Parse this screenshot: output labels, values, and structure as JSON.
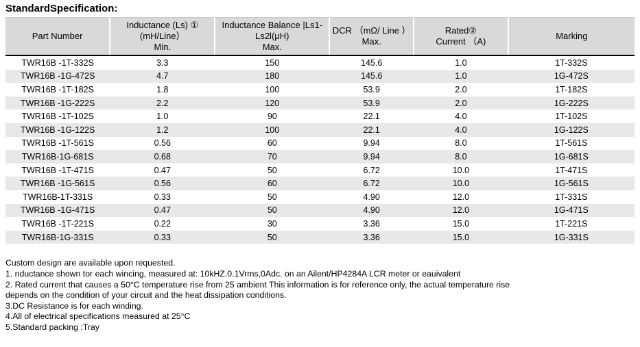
{
  "title": "StandardSpecification:",
  "table": {
    "headers": [
      {
        "id": "part-number",
        "lines": [
          "Part Number"
        ]
      },
      {
        "id": "inductance",
        "lines": [
          "Inductance (Ls) ①",
          "(mH/Line）",
          "Min."
        ]
      },
      {
        "id": "inductance-balance",
        "lines": [
          "Inductance Balance |Ls1-",
          "Ls2l(μH)",
          "Max."
        ]
      },
      {
        "id": "dcr",
        "lines": [
          "DCR （mΩ/ Line ）",
          "Max."
        ]
      },
      {
        "id": "rated-current",
        "lines": [
          "Rated②",
          "Current （A)"
        ]
      },
      {
        "id": "marking",
        "lines": [
          "Marking"
        ]
      }
    ],
    "rows": [
      [
        "TWR16B -1T-332S",
        "3.3",
        "150",
        "145.6",
        "1.0",
        "1T-332S"
      ],
      [
        "TWR16B -1G-472S",
        "4.7",
        "180",
        "145.6",
        "1.0",
        "1G-472S"
      ],
      [
        "TWR16B -1T-182S",
        "1.8",
        "100",
        "53.9",
        "2.0",
        "1T-182S"
      ],
      [
        "TWR16B -1G-222S",
        "2.2",
        "120",
        "53.9",
        "2.0",
        "1G-222S"
      ],
      [
        "TWR16B -1T-102S",
        "1.0",
        "90",
        "22.1",
        "4.0",
        "1T-102S"
      ],
      [
        "TWR16B -1G-122S",
        "1.2",
        "100",
        "22.1",
        "4.0",
        "1G-122S"
      ],
      [
        "TWR16B -1T-561S",
        "0.56",
        "60",
        "9.94",
        "8.0",
        "1T-561S"
      ],
      [
        "TWR16B-1G-681S",
        "0.68",
        "70",
        "9.94",
        "8.0",
        "1G-681S"
      ],
      [
        "TWR16B -1T-471S",
        "0.47",
        "50",
        "6.72",
        "10.0",
        "1T-471S"
      ],
      [
        "TWR16B -1G-561S",
        "0.56",
        "60",
        "6.72",
        "10.0",
        "1G-561S"
      ],
      [
        "TWR16B-1T-331S",
        "0.33",
        "50",
        "4.90",
        "12.0",
        "1T-331S"
      ],
      [
        "TWR16B -1G-471S",
        "0.47",
        "50",
        "4.90",
        "12.0",
        "1G-471S"
      ],
      [
        "TWR16B -1T-221S",
        "0.22",
        "30",
        "3.36",
        "15.0",
        "1T-221S"
      ],
      [
        "TWR16B-1G-331S",
        "0.33",
        "50",
        "3.36",
        "15.0",
        "1G-331S"
      ]
    ]
  },
  "notes": [
    "Custom design are available upon requested.",
    "1. nductance shown tor each wincing, measured at: 10kHZ.0.1Vrms,0Adc. on an Ailent/HP4284A LCR meter or eauivalent",
    "2. Rated current that causes a 50°C temperature rise from 25 ambient This information is for reference only, the actual temperature rise",
    "depends on the condition of your circuit and the heat dissipation conditions.",
    "3.DC Resistance is for each winding.",
    "4.All of electrical specifications measured at 25°C",
    "5.Standard packing :Tray"
  ]
}
